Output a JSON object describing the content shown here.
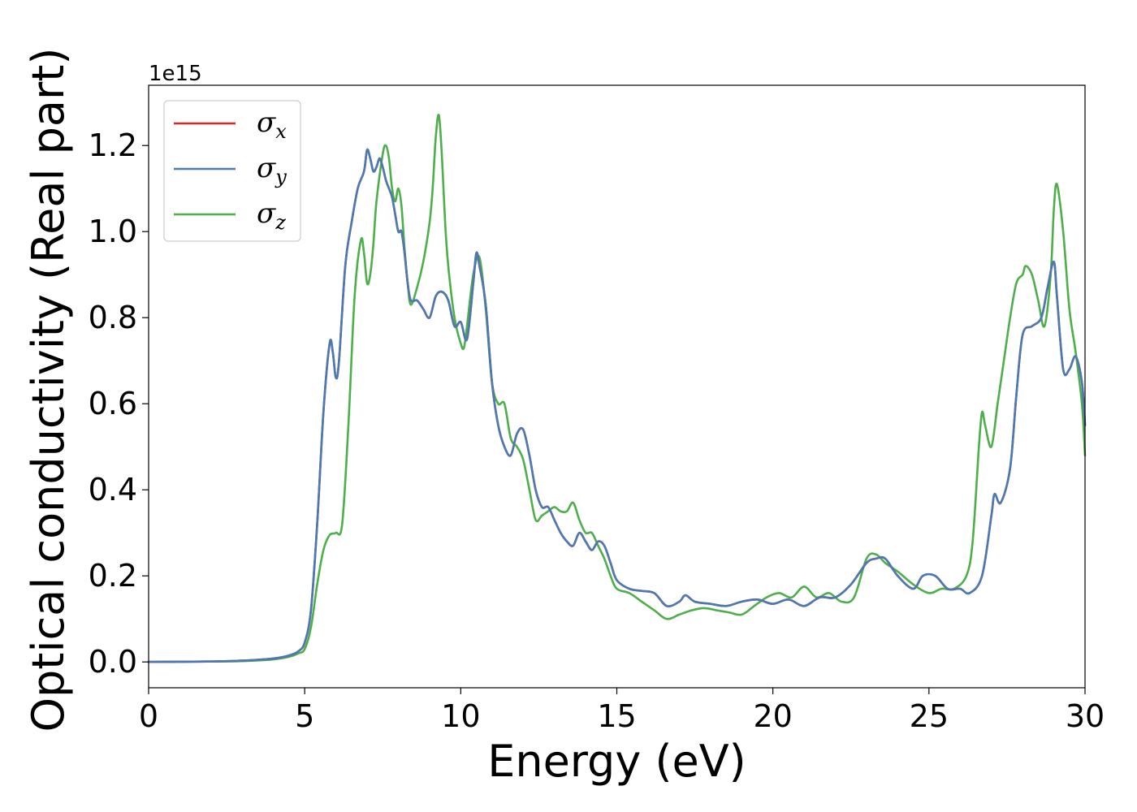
{
  "chart_data": {
    "type": "line",
    "title": "",
    "xlabel": "Energy (eV)",
    "ylabel": "Optical conductivity (Real part)",
    "y_offset_label": "1e15",
    "xlim": [
      0,
      30
    ],
    "ylim": [
      -0.06,
      1.34
    ],
    "x_ticks": [
      0,
      5,
      10,
      15,
      20,
      25,
      30
    ],
    "x_tick_labels": [
      "0",
      "5",
      "10",
      "15",
      "20",
      "25",
      "30"
    ],
    "y_ticks": [
      0.0,
      0.2,
      0.4,
      0.6,
      0.8,
      1.0,
      1.2
    ],
    "y_tick_labels": [
      "0.0",
      "0.2",
      "0.4",
      "0.6",
      "0.8",
      "1.0",
      "1.2"
    ],
    "grid": false,
    "legend_position": "top-left",
    "series": [
      {
        "name": "σx",
        "symbol": "σ",
        "subscript": "x",
        "color": "#d62728",
        "x": [
          0,
          2,
          3,
          4,
          4.5,
          4.8,
          5.0,
          5.2,
          5.4,
          5.6,
          5.8,
          5.9,
          6.0,
          6.1,
          6.3,
          6.5,
          6.7,
          6.9,
          7.0,
          7.1,
          7.2,
          7.3,
          7.4,
          7.5,
          7.6,
          7.7,
          7.8,
          7.9,
          8.0,
          8.1,
          8.2,
          8.3,
          8.4,
          8.6,
          8.8,
          9.0,
          9.2,
          9.4,
          9.6,
          9.8,
          10.0,
          10.2,
          10.4,
          10.5,
          10.6,
          10.8,
          11.0,
          11.2,
          11.4,
          11.6,
          11.8,
          12.0,
          12.2,
          12.4,
          12.6,
          12.8,
          13.0,
          13.2,
          13.4,
          13.6,
          13.8,
          14.0,
          14.2,
          14.4,
          14.6,
          14.8,
          15.0,
          15.4,
          15.8,
          16.2,
          16.6,
          17.0,
          17.2,
          17.5,
          18.0,
          18.5,
          19.0,
          19.5,
          20.0,
          20.5,
          21.0,
          21.5,
          22.0,
          22.5,
          23.0,
          23.3,
          23.6,
          24.0,
          24.5,
          24.8,
          25.2,
          25.6,
          26.0,
          26.3,
          26.7,
          27.0,
          27.1,
          27.3,
          27.6,
          27.8,
          28.0,
          28.3,
          28.6,
          28.8,
          29.0,
          29.1,
          29.3,
          29.5,
          29.7,
          29.9,
          30.0
        ],
        "y": [
          0,
          0.001,
          0.003,
          0.008,
          0.015,
          0.025,
          0.045,
          0.12,
          0.32,
          0.58,
          0.74,
          0.72,
          0.66,
          0.7,
          0.92,
          1.02,
          1.1,
          1.14,
          1.19,
          1.17,
          1.14,
          1.15,
          1.17,
          1.15,
          1.12,
          1.1,
          1.08,
          1.04,
          1.0,
          1.0,
          0.95,
          0.88,
          0.84,
          0.84,
          0.82,
          0.8,
          0.85,
          0.86,
          0.84,
          0.78,
          0.79,
          0.75,
          0.88,
          0.95,
          0.92,
          0.83,
          0.65,
          0.55,
          0.5,
          0.48,
          0.53,
          0.54,
          0.48,
          0.4,
          0.36,
          0.36,
          0.33,
          0.3,
          0.28,
          0.27,
          0.3,
          0.28,
          0.26,
          0.28,
          0.27,
          0.23,
          0.19,
          0.17,
          0.165,
          0.16,
          0.13,
          0.14,
          0.155,
          0.14,
          0.135,
          0.13,
          0.14,
          0.145,
          0.135,
          0.145,
          0.13,
          0.15,
          0.15,
          0.18,
          0.23,
          0.24,
          0.24,
          0.2,
          0.17,
          0.2,
          0.2,
          0.17,
          0.17,
          0.16,
          0.2,
          0.34,
          0.39,
          0.37,
          0.45,
          0.62,
          0.76,
          0.78,
          0.8,
          0.87,
          0.93,
          0.85,
          0.68,
          0.68,
          0.71,
          0.65,
          0.55
        ]
      },
      {
        "name": "σy",
        "symbol": "σ",
        "subscript": "y",
        "color": "#4a7ab4",
        "x": [
          0,
          2,
          3,
          4,
          4.5,
          4.8,
          5.0,
          5.2,
          5.4,
          5.6,
          5.8,
          5.9,
          6.0,
          6.1,
          6.3,
          6.5,
          6.7,
          6.9,
          7.0,
          7.1,
          7.2,
          7.3,
          7.4,
          7.5,
          7.6,
          7.7,
          7.8,
          7.9,
          8.0,
          8.1,
          8.2,
          8.3,
          8.4,
          8.6,
          8.8,
          9.0,
          9.2,
          9.4,
          9.6,
          9.8,
          10.0,
          10.2,
          10.4,
          10.5,
          10.6,
          10.8,
          11.0,
          11.2,
          11.4,
          11.6,
          11.8,
          12.0,
          12.2,
          12.4,
          12.6,
          12.8,
          13.0,
          13.2,
          13.4,
          13.6,
          13.8,
          14.0,
          14.2,
          14.4,
          14.6,
          14.8,
          15.0,
          15.4,
          15.8,
          16.2,
          16.6,
          17.0,
          17.2,
          17.5,
          18.0,
          18.5,
          19.0,
          19.5,
          20.0,
          20.5,
          21.0,
          21.5,
          22.0,
          22.5,
          23.0,
          23.3,
          23.6,
          24.0,
          24.5,
          24.8,
          25.2,
          25.6,
          26.0,
          26.3,
          26.7,
          27.0,
          27.1,
          27.3,
          27.6,
          27.8,
          28.0,
          28.3,
          28.6,
          28.8,
          29.0,
          29.1,
          29.3,
          29.5,
          29.7,
          29.9,
          30.0
        ],
        "y": [
          0,
          0.001,
          0.003,
          0.008,
          0.015,
          0.025,
          0.045,
          0.12,
          0.32,
          0.58,
          0.74,
          0.72,
          0.66,
          0.7,
          0.92,
          1.02,
          1.1,
          1.14,
          1.19,
          1.17,
          1.14,
          1.15,
          1.17,
          1.15,
          1.12,
          1.1,
          1.08,
          1.04,
          1.0,
          1.0,
          0.95,
          0.88,
          0.84,
          0.84,
          0.82,
          0.8,
          0.85,
          0.86,
          0.84,
          0.78,
          0.79,
          0.75,
          0.88,
          0.95,
          0.92,
          0.83,
          0.65,
          0.55,
          0.5,
          0.48,
          0.53,
          0.54,
          0.48,
          0.4,
          0.36,
          0.36,
          0.33,
          0.3,
          0.28,
          0.27,
          0.3,
          0.28,
          0.26,
          0.28,
          0.27,
          0.23,
          0.19,
          0.17,
          0.165,
          0.16,
          0.13,
          0.14,
          0.155,
          0.14,
          0.135,
          0.13,
          0.14,
          0.145,
          0.135,
          0.145,
          0.13,
          0.15,
          0.15,
          0.18,
          0.23,
          0.24,
          0.24,
          0.2,
          0.17,
          0.2,
          0.2,
          0.17,
          0.17,
          0.16,
          0.2,
          0.34,
          0.39,
          0.37,
          0.45,
          0.62,
          0.76,
          0.78,
          0.8,
          0.87,
          0.93,
          0.85,
          0.68,
          0.68,
          0.71,
          0.65,
          0.55
        ]
      },
      {
        "name": "σz",
        "symbol": "σ",
        "subscript": "z",
        "color": "#4daf4a",
        "x": [
          0,
          2,
          3,
          4,
          4.5,
          4.8,
          5.0,
          5.2,
          5.4,
          5.6,
          5.8,
          6.0,
          6.2,
          6.4,
          6.6,
          6.8,
          6.9,
          7.0,
          7.1,
          7.2,
          7.3,
          7.5,
          7.6,
          7.7,
          7.8,
          7.9,
          8.0,
          8.1,
          8.2,
          8.3,
          8.4,
          8.6,
          8.8,
          9.0,
          9.1,
          9.2,
          9.3,
          9.4,
          9.5,
          9.6,
          9.8,
          10.0,
          10.1,
          10.2,
          10.4,
          10.6,
          10.8,
          11.0,
          11.2,
          11.4,
          11.6,
          11.8,
          12.0,
          12.2,
          12.4,
          12.6,
          12.8,
          13.0,
          13.2,
          13.4,
          13.6,
          13.8,
          14.0,
          14.2,
          14.4,
          14.6,
          14.8,
          15.0,
          15.4,
          15.8,
          16.2,
          16.6,
          17.0,
          17.4,
          17.8,
          18.2,
          18.6,
          19.0,
          19.4,
          19.8,
          20.2,
          20.6,
          21.0,
          21.4,
          21.8,
          22.2,
          22.6,
          23.0,
          23.3,
          23.6,
          24.0,
          24.5,
          25.0,
          25.4,
          25.8,
          26.2,
          26.4,
          26.6,
          26.7,
          26.8,
          27.0,
          27.2,
          27.4,
          27.6,
          27.8,
          28.0,
          28.1,
          28.3,
          28.5,
          28.7,
          28.9,
          29.0,
          29.1,
          29.3,
          29.5,
          29.7,
          29.9,
          30.0
        ],
        "y": [
          0,
          0.001,
          0.002,
          0.006,
          0.012,
          0.02,
          0.03,
          0.08,
          0.18,
          0.26,
          0.295,
          0.3,
          0.32,
          0.55,
          0.85,
          0.98,
          0.95,
          0.88,
          0.9,
          0.97,
          1.07,
          1.18,
          1.2,
          1.17,
          1.1,
          1.07,
          1.1,
          1.06,
          0.96,
          0.88,
          0.83,
          0.87,
          0.93,
          1.02,
          1.1,
          1.22,
          1.27,
          1.17,
          1.02,
          0.92,
          0.8,
          0.74,
          0.73,
          0.78,
          0.9,
          0.94,
          0.82,
          0.65,
          0.6,
          0.6,
          0.52,
          0.5,
          0.47,
          0.4,
          0.33,
          0.34,
          0.35,
          0.36,
          0.35,
          0.35,
          0.37,
          0.33,
          0.3,
          0.3,
          0.27,
          0.24,
          0.2,
          0.17,
          0.16,
          0.14,
          0.12,
          0.1,
          0.11,
          0.12,
          0.125,
          0.12,
          0.115,
          0.11,
          0.13,
          0.15,
          0.16,
          0.15,
          0.175,
          0.15,
          0.16,
          0.14,
          0.15,
          0.24,
          0.25,
          0.23,
          0.21,
          0.18,
          0.16,
          0.17,
          0.17,
          0.2,
          0.28,
          0.5,
          0.58,
          0.55,
          0.5,
          0.6,
          0.7,
          0.8,
          0.88,
          0.9,
          0.92,
          0.9,
          0.84,
          0.78,
          0.9,
          1.05,
          1.11,
          1.0,
          0.82,
          0.72,
          0.6,
          0.48
        ]
      }
    ]
  }
}
